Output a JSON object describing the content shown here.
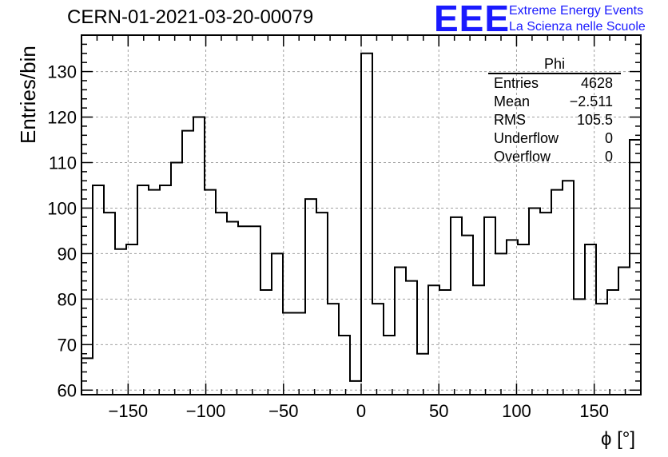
{
  "header": {
    "run_title": "CERN-01-2021-03-20-00079",
    "logo": "EEE",
    "logo_line1": "Extreme Energy Events",
    "logo_line2": "La Scienza nelle Scuole"
  },
  "stats": {
    "name": "Phi",
    "rows": [
      {
        "label": "Entries",
        "value": "4628"
      },
      {
        "label": "Mean",
        "value": "−2.511"
      },
      {
        "label": "RMS",
        "value": "105.5"
      },
      {
        "label": "Underflow",
        "value": "0"
      },
      {
        "label": "Overflow",
        "value": "0"
      }
    ]
  },
  "colors": {
    "line": "#000000",
    "grid": "#a0a0a0",
    "logo": "#1a1aff"
  },
  "chart_data": {
    "type": "histogram",
    "title": "CERN-01-2021-03-20-00079",
    "xlabel": "ϕ [°]",
    "ylabel": "Entries/bin",
    "xlim": [
      -180,
      180
    ],
    "ylim": [
      59,
      138
    ],
    "bin_width": 7.2,
    "grid": true,
    "xticks": [
      -150,
      -100,
      -50,
      0,
      50,
      100,
      150
    ],
    "yticks": [
      60,
      70,
      80,
      90,
      100,
      110,
      120,
      130
    ],
    "values": [
      67,
      105,
      99,
      91,
      92,
      105,
      104,
      105,
      110,
      117,
      120,
      104,
      99,
      97,
      96,
      96,
      82,
      90,
      77,
      77,
      102,
      99,
      79,
      72,
      62,
      134,
      79,
      72,
      87,
      84,
      68,
      83,
      82,
      98,
      94,
      83,
      98,
      90,
      93,
      92,
      100,
      99,
      104,
      106,
      80,
      92,
      79,
      82,
      87,
      115
    ]
  }
}
